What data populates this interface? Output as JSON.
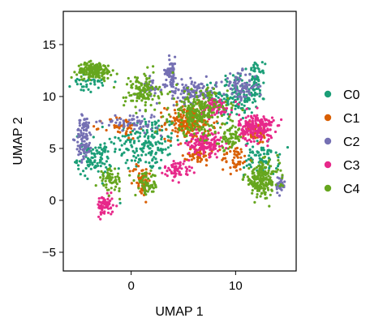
{
  "chart_data": {
    "type": "scatter",
    "title": "",
    "xlabel": "UMAP 1",
    "ylabel": "UMAP 2",
    "xlim": [
      -6.5,
      15.8
    ],
    "ylim": [
      -6.8,
      18.2
    ],
    "xticks": [
      0,
      10
    ],
    "xtick_labels": [
      "0",
      "10"
    ],
    "yticks": [
      -5,
      0,
      5,
      10,
      15
    ],
    "ytick_labels": [
      "−5",
      "0",
      "5",
      "10",
      "15"
    ],
    "grid": false,
    "legend_position": "right",
    "series": [
      {
        "name": "C0",
        "color": "#1b9e77",
        "clusters": [
          {
            "cx": 1.5,
            "cy": 5.5,
            "sx": 3.0,
            "sy": 2.5,
            "n": 180
          },
          {
            "cx": 10.0,
            "cy": 10.0,
            "sx": 2.0,
            "sy": 2.0,
            "n": 150
          },
          {
            "cx": -3.5,
            "cy": 4.0,
            "sx": 1.5,
            "sy": 1.5,
            "n": 100
          },
          {
            "cx": 12.0,
            "cy": 11.5,
            "sx": 0.7,
            "sy": 1.5,
            "n": 60
          },
          {
            "cx": 12.5,
            "cy": 4.0,
            "sx": 1.5,
            "sy": 1.5,
            "n": 80
          },
          {
            "cx": -4.0,
            "cy": 11.5,
            "sx": 1.5,
            "sy": 1.0,
            "n": 40
          }
        ]
      },
      {
        "name": "C1",
        "color": "#d95f02",
        "clusters": [
          {
            "cx": 5.5,
            "cy": 7.5,
            "sx": 2.0,
            "sy": 1.5,
            "n": 200
          },
          {
            "cx": 1.0,
            "cy": 2.0,
            "sx": 0.8,
            "sy": 1.5,
            "n": 50
          },
          {
            "cx": 6.5,
            "cy": 4.5,
            "sx": 1.0,
            "sy": 1.0,
            "n": 50
          },
          {
            "cx": 10.0,
            "cy": 4.0,
            "sx": 1.2,
            "sy": 1.2,
            "n": 50
          },
          {
            "cx": -1.0,
            "cy": 7.0,
            "sx": 1.5,
            "sy": 1.0,
            "n": 40
          },
          {
            "cx": 12.0,
            "cy": 6.5,
            "sx": 1.0,
            "sy": 1.0,
            "n": 40
          }
        ]
      },
      {
        "name": "C2",
        "color": "#7570b3",
        "clusters": [
          {
            "cx": -4.5,
            "cy": 6.0,
            "sx": 0.7,
            "sy": 2.0,
            "n": 100
          },
          {
            "cx": 3.8,
            "cy": 12.5,
            "sx": 0.5,
            "sy": 1.2,
            "n": 60
          },
          {
            "cx": 6.0,
            "cy": 10.5,
            "sx": 2.0,
            "sy": 1.0,
            "n": 120
          },
          {
            "cx": 10.5,
            "cy": 11.0,
            "sx": 1.5,
            "sy": 1.2,
            "n": 80
          },
          {
            "cx": 14.3,
            "cy": 1.5,
            "sx": 0.4,
            "sy": 0.8,
            "n": 40
          },
          {
            "cx": 0.0,
            "cy": 7.5,
            "sx": 2.5,
            "sy": 0.8,
            "n": 60
          },
          {
            "cx": 2.0,
            "cy": 11.0,
            "sx": 1.0,
            "sy": 0.8,
            "n": 30
          }
        ]
      },
      {
        "name": "C3",
        "color": "#e7298a",
        "clusters": [
          {
            "cx": -2.5,
            "cy": -0.5,
            "sx": 0.7,
            "sy": 0.9,
            "n": 80
          },
          {
            "cx": 7.0,
            "cy": 5.5,
            "sx": 1.5,
            "sy": 1.0,
            "n": 150
          },
          {
            "cx": 12.0,
            "cy": 7.0,
            "sx": 1.5,
            "sy": 1.2,
            "n": 200
          },
          {
            "cx": 4.5,
            "cy": 3.0,
            "sx": 1.2,
            "sy": 0.8,
            "n": 60
          },
          {
            "cx": 8.0,
            "cy": 9.0,
            "sx": 1.5,
            "sy": 0.8,
            "n": 80
          }
        ]
      },
      {
        "name": "C4",
        "color": "#66a61e",
        "clusters": [
          {
            "cx": -3.5,
            "cy": 12.5,
            "sx": 1.5,
            "sy": 0.7,
            "n": 180
          },
          {
            "cx": 1.0,
            "cy": 10.5,
            "sx": 1.5,
            "sy": 1.5,
            "n": 120
          },
          {
            "cx": 6.5,
            "cy": 8.5,
            "sx": 2.5,
            "sy": 2.0,
            "n": 250
          },
          {
            "cx": 12.5,
            "cy": 2.0,
            "sx": 1.5,
            "sy": 1.5,
            "n": 200
          },
          {
            "cx": -2.0,
            "cy": 2.0,
            "sx": 1.0,
            "sy": 1.0,
            "n": 60
          },
          {
            "cx": 1.5,
            "cy": 1.5,
            "sx": 1.0,
            "sy": 1.0,
            "n": 60
          },
          {
            "cx": 9.5,
            "cy": 6.0,
            "sx": 1.0,
            "sy": 1.0,
            "n": 60
          }
        ]
      }
    ]
  }
}
